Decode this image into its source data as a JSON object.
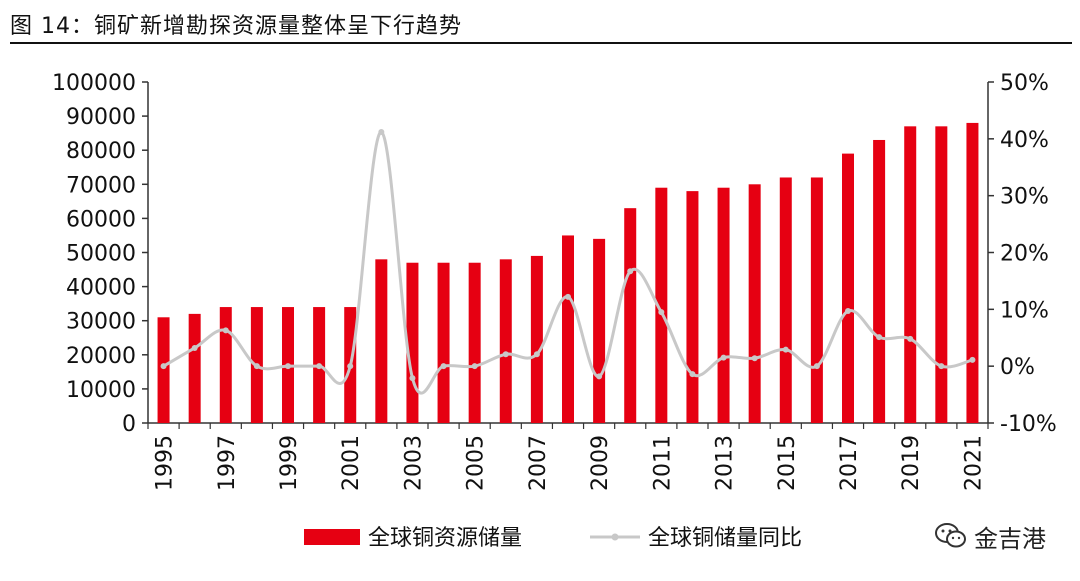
{
  "header": {
    "title": "图 14：铜矿新增勘探资源量整体呈下行趋势"
  },
  "watermark": {
    "text": "金吉港",
    "icon": "wechat-icon"
  },
  "colors": {
    "bar": "#e60012",
    "line": "#c8c8c8",
    "axis": "#333333"
  },
  "chart_data": {
    "type": "bar",
    "categories": [
      "1995",
      "1996",
      "1997",
      "1998",
      "1999",
      "2000",
      "2001",
      "2002",
      "2003",
      "2004",
      "2005",
      "2006",
      "2007",
      "2008",
      "2009",
      "2010",
      "2011",
      "2012",
      "2013",
      "2014",
      "2015",
      "2016",
      "2017",
      "2018",
      "2019",
      "2020",
      "2021"
    ],
    "x_tick_labels": [
      "1995",
      "1997",
      "1999",
      "2001",
      "2003",
      "2005",
      "2007",
      "2009",
      "2011",
      "2013",
      "2015",
      "2017",
      "2019",
      "2021"
    ],
    "y_left": {
      "ylim": [
        0,
        100000
      ],
      "ticks": [
        "0",
        "10000",
        "20000",
        "30000",
        "40000",
        "50000",
        "60000",
        "70000",
        "80000",
        "90000",
        "100000"
      ]
    },
    "y_right": {
      "ylim": [
        -10,
        50
      ],
      "ticks": [
        "-10%",
        "0%",
        "10%",
        "20%",
        "30%",
        "40%",
        "50%"
      ]
    },
    "series": [
      {
        "name": "全球铜资源储量",
        "type": "bar",
        "axis": "left",
        "values": [
          31000,
          32000,
          34000,
          34000,
          34000,
          34000,
          34000,
          48000,
          47000,
          47000,
          47000,
          48000,
          49000,
          55000,
          54000,
          63000,
          69000,
          68000,
          69000,
          70000,
          72000,
          72000,
          79000,
          83000,
          87000,
          87000,
          88000
        ]
      },
      {
        "name": "全球铜储量同比",
        "type": "line",
        "axis": "right",
        "values": [
          0,
          3.2,
          6.3,
          0,
          0,
          0,
          0,
          41.2,
          -2.1,
          0,
          0,
          2.1,
          2.1,
          12.2,
          -1.8,
          16.7,
          9.5,
          -1.4,
          1.5,
          1.4,
          2.9,
          0,
          9.7,
          5.1,
          4.8,
          0,
          1.1
        ]
      }
    ],
    "legend": {
      "position": "bottom",
      "items": [
        "全球铜资源储量",
        "全球铜储量同比"
      ]
    }
  }
}
